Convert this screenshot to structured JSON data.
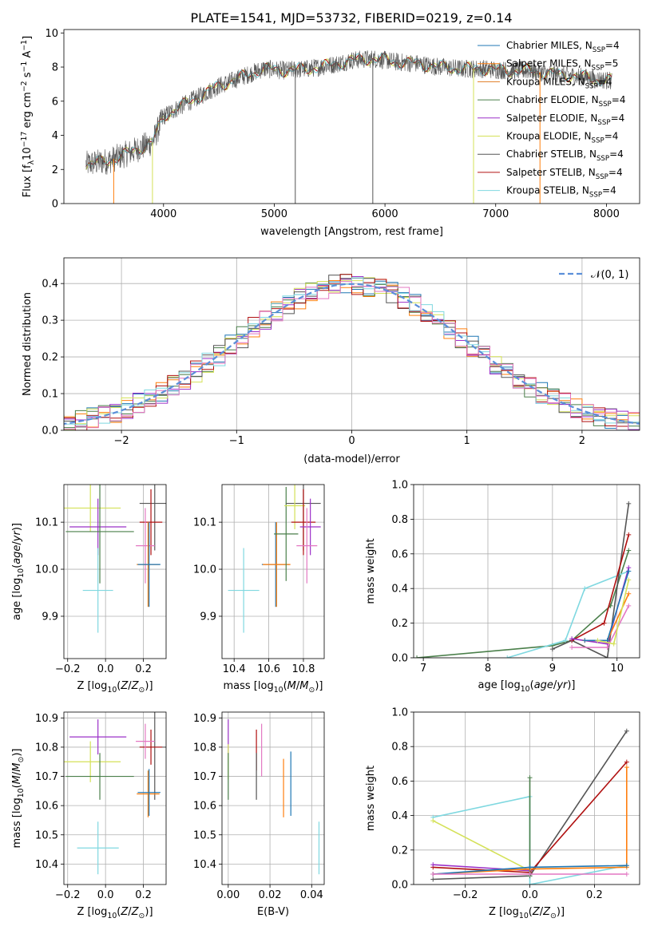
{
  "figure": {
    "title": "PLATE=1541, MJD=53732, FIBERID=0219, z=0.14"
  },
  "legend_spectrum": [
    {
      "model": "Chabrier MILES",
      "nssp": "4",
      "color": "#1f77b4"
    },
    {
      "model": "Salpeter MILES",
      "nssp": "5",
      "color": "#ff7f0e"
    },
    {
      "model": "Kroupa MILES",
      "nssp": "4",
      "color": "#e07b22"
    },
    {
      "model": "Chabrier ELODIE",
      "nssp": "4",
      "color": "#4a7f4a"
    },
    {
      "model": "Salpeter ELODIE",
      "nssp": "4",
      "color": "#9b30c8"
    },
    {
      "model": "Kroupa ELODIE",
      "nssp": "4",
      "color": "#d4e157"
    },
    {
      "model": "Chabrier STELIB",
      "nssp": "4",
      "color": "#555555"
    },
    {
      "model": "Salpeter STELIB",
      "nssp": "4",
      "color": "#b01010"
    },
    {
      "model": "Kroupa STELIB",
      "nssp": "4",
      "color": "#7fd8e0"
    }
  ],
  "chart_data": [
    {
      "id": "spectrum",
      "type": "line",
      "xlabel": "wavelength [Angstrom, rest frame]",
      "ylabel": "Flux [f_λ10^-17 erg cm^-2 s^-1 A^-1]",
      "xlim": [
        3100,
        8300
      ],
      "ylim": [
        0,
        10.2
      ],
      "xticks": [
        4000,
        5000,
        6000,
        7000,
        8000
      ],
      "yticks": [
        0,
        2,
        4,
        6,
        8,
        10
      ],
      "grid": false,
      "legend_position": "top-right",
      "data_curve_anchors": {
        "x": [
          3300,
          3500,
          3700,
          3900,
          4000,
          4100,
          4300,
          4500,
          4700,
          4900,
          5100,
          5300,
          5500,
          5700,
          5900,
          6100,
          6300,
          6500,
          6700,
          6900,
          7100,
          7300,
          7500,
          7700,
          7900,
          8050
        ],
        "y": [
          2.3,
          2.5,
          3.0,
          3.6,
          5.1,
          5.5,
          6.2,
          6.9,
          7.4,
          7.9,
          7.8,
          7.9,
          8.1,
          8.4,
          8.5,
          8.3,
          8.2,
          8.0,
          7.9,
          7.9,
          7.8,
          7.8,
          7.6,
          7.5,
          7.3,
          7.2
        ]
      },
      "model_color": "#7fd8e0",
      "data_color": "#555555"
    },
    {
      "id": "residual-hist",
      "type": "histogram",
      "xlabel": "(data-model)/error",
      "ylabel": "Normed distribution",
      "xlim": [
        -2.5,
        2.5
      ],
      "ylim": [
        0,
        0.47
      ],
      "xticks": [
        -2,
        -1,
        0,
        1,
        2
      ],
      "yticks": [
        0.0,
        0.1,
        0.2,
        0.3,
        0.4
      ],
      "grid": true,
      "bin_width": 0.1,
      "reference_curve": {
        "label": "𝒩(0, 1)",
        "mean": 0,
        "sigma": 1,
        "color": "#5b8fd9"
      },
      "series_colors": [
        "#1f77b4",
        "#ff7f0e",
        "#4a7f4a",
        "#9b30c8",
        "#d4e157",
        "#555555",
        "#b01010",
        "#7fd8e0",
        "#e377c2"
      ]
    },
    {
      "id": "age-vs-Z",
      "type": "errorbar",
      "xlabel": "Z [log10(Z/Z_sun)]",
      "ylabel": "age [log10(age/yr)]",
      "xlim": [
        -0.22,
        0.32
      ],
      "ylim": [
        9.81,
        10.18
      ],
      "xticks": [
        -0.2,
        0.0,
        0.2
      ],
      "yticks": [
        9.9,
        10.0,
        10.1
      ],
      "grid": true,
      "points": [
        {
          "color": "#d4e157",
          "x": -0.08,
          "xerr": 0.16,
          "y": 10.13,
          "yerr": 0.05
        },
        {
          "color": "#9b30c8",
          "x": -0.04,
          "xerr": 0.15,
          "y": 10.09,
          "yerr": 0.06
        },
        {
          "color": "#4a7f4a",
          "x": -0.03,
          "xerr": 0.18,
          "y": 10.08,
          "yerr": 0.11
        },
        {
          "color": "#7fd8e0",
          "x": -0.04,
          "xerr": 0.08,
          "y": 9.955,
          "yerr": 0.09
        },
        {
          "color": "#555555",
          "x": 0.26,
          "xerr": 0.08,
          "y": 10.14,
          "yerr": 0.1
        },
        {
          "color": "#b01010",
          "x": 0.24,
          "xerr": 0.06,
          "y": 10.1,
          "yerr": 0.07
        },
        {
          "color": "#e377c2",
          "x": 0.21,
          "xerr": 0.05,
          "y": 10.05,
          "yerr": 0.08
        },
        {
          "color": "#ff7f0e",
          "x": 0.225,
          "xerr": 0.06,
          "y": 10.01,
          "yerr": 0.09
        },
        {
          "color": "#1f77b4",
          "x": 0.23,
          "xerr": 0.06,
          "y": 10.01,
          "yerr": 0.09
        }
      ]
    },
    {
      "id": "age-vs-mass",
      "type": "errorbar",
      "xlabel": "mass [log10(M/M_sun)]",
      "ylabel": "",
      "xlim": [
        10.33,
        10.92
      ],
      "ylim": [
        9.81,
        10.18
      ],
      "xticks": [
        10.4,
        10.6,
        10.8
      ],
      "yticks": [
        9.9,
        10.0,
        10.1
      ],
      "grid": true,
      "points": [
        {
          "color": "#7fd8e0",
          "x": 10.455,
          "xerr": 0.09,
          "y": 9.955,
          "yerr": 0.09
        },
        {
          "color": "#1f77b4",
          "x": 10.64,
          "xerr": 0.08,
          "y": 10.01,
          "yerr": 0.09
        },
        {
          "color": "#ff7f0e",
          "x": 10.645,
          "xerr": 0.08,
          "y": 10.01,
          "yerr": 0.09
        },
        {
          "color": "#4a7f4a",
          "x": 10.7,
          "xerr": 0.07,
          "y": 10.075,
          "yerr": 0.1
        },
        {
          "color": "#555555",
          "x": 10.8,
          "xerr": 0.1,
          "y": 10.14,
          "yerr": 0.1
        },
        {
          "color": "#d4e157",
          "x": 10.75,
          "xerr": 0.06,
          "y": 10.135,
          "yerr": 0.05
        },
        {
          "color": "#b01010",
          "x": 10.8,
          "xerr": 0.07,
          "y": 10.1,
          "yerr": 0.07
        },
        {
          "color": "#9b30c8",
          "x": 10.84,
          "xerr": 0.06,
          "y": 10.09,
          "yerr": 0.06
        },
        {
          "color": "#e377c2",
          "x": 10.82,
          "xerr": 0.06,
          "y": 10.05,
          "yerr": 0.08
        }
      ]
    },
    {
      "id": "massweight-vs-age",
      "type": "line",
      "xlabel": "age [log10(age/yr)]",
      "ylabel": "mass weight",
      "xlim": [
        6.85,
        10.35
      ],
      "ylim": [
        0,
        1.0
      ],
      "xticks": [
        7,
        8,
        9,
        10
      ],
      "yticks": [
        0.0,
        0.2,
        0.4,
        0.6,
        0.8,
        1.0
      ],
      "grid": true,
      "series": [
        {
          "color": "#4a7f4a",
          "x": [
            6.9,
            9.0,
            9.3,
            9.9,
            10.18
          ],
          "y": [
            0.0,
            0.07,
            0.1,
            0.3,
            0.62
          ]
        },
        {
          "color": "#7fd8e0",
          "x": [
            8.3,
            9.2,
            9.5,
            10.18
          ],
          "y": [
            0.0,
            0.1,
            0.4,
            0.5
          ]
        },
        {
          "color": "#555555",
          "x": [
            9.0,
            9.3,
            9.85,
            10.18
          ],
          "y": [
            0.05,
            0.1,
            0.0,
            0.89
          ]
        },
        {
          "color": "#b01010",
          "x": [
            9.3,
            9.8,
            10.18
          ],
          "y": [
            0.1,
            0.2,
            0.71
          ]
        },
        {
          "color": "#9b30c8",
          "x": [
            9.3,
            9.85,
            10.18
          ],
          "y": [
            0.11,
            0.08,
            0.52
          ]
        },
        {
          "color": "#e377c2",
          "x": [
            9.3,
            9.85,
            10.18
          ],
          "y": [
            0.06,
            0.06,
            0.3
          ]
        },
        {
          "color": "#ff7f0e",
          "x": [
            9.5,
            9.85,
            10.18
          ],
          "y": [
            0.1,
            0.1,
            0.37
          ]
        },
        {
          "color": "#1f77b4",
          "x": [
            9.5,
            9.85,
            10.18
          ],
          "y": [
            0.1,
            0.1,
            0.5
          ]
        },
        {
          "color": "#d4e157",
          "x": [
            9.7,
            9.95,
            10.18
          ],
          "y": [
            0.1,
            0.08,
            0.45
          ]
        }
      ]
    },
    {
      "id": "mass-vs-Z",
      "type": "errorbar",
      "xlabel": "Z [log10(Z/Z_sun)]",
      "ylabel": "mass [log10(M/M_sun)]",
      "xlim": [
        -0.22,
        0.32
      ],
      "ylim": [
        10.33,
        10.92
      ],
      "xticks": [
        -0.2,
        0.0,
        0.2
      ],
      "yticks": [
        10.4,
        10.5,
        10.6,
        10.7,
        10.8,
        10.9
      ],
      "grid": true,
      "points": [
        {
          "color": "#9b30c8",
          "x": -0.04,
          "xerr": 0.15,
          "y": 10.835,
          "yerr": 0.06
        },
        {
          "color": "#d4e157",
          "x": -0.08,
          "xerr": 0.16,
          "y": 10.75,
          "yerr": 0.07
        },
        {
          "color": "#4a7f4a",
          "x": -0.03,
          "xerr": 0.18,
          "y": 10.7,
          "yerr": 0.08
        },
        {
          "color": "#7fd8e0",
          "x": -0.04,
          "xerr": 0.11,
          "y": 10.455,
          "yerr": 0.09
        },
        {
          "color": "#555555",
          "x": 0.26,
          "xerr": 0.08,
          "y": 10.8,
          "yerr": 0.18
        },
        {
          "color": "#b01010",
          "x": 0.24,
          "xerr": 0.06,
          "y": 10.8,
          "yerr": 0.06
        },
        {
          "color": "#e377c2",
          "x": 0.21,
          "xerr": 0.05,
          "y": 10.82,
          "yerr": 0.06
        },
        {
          "color": "#ff7f0e",
          "x": 0.225,
          "xerr": 0.06,
          "y": 10.64,
          "yerr": 0.08
        },
        {
          "color": "#1f77b4",
          "x": 0.23,
          "xerr": 0.06,
          "y": 10.645,
          "yerr": 0.08
        }
      ]
    },
    {
      "id": "mass-vs-ebv",
      "type": "errorbar",
      "xlabel": "E(B-V)",
      "ylabel": "",
      "xlim": [
        -0.003,
        0.046
      ],
      "ylim": [
        10.33,
        10.92
      ],
      "xticks": [
        0.0,
        0.02,
        0.04
      ],
      "yticks": [
        10.4,
        10.5,
        10.6,
        10.7,
        10.8,
        10.9
      ],
      "grid": true,
      "points": [
        {
          "color": "#9b30c8",
          "x": 0.0,
          "xerr": 0,
          "y": 10.835,
          "yerr": 0.06
        },
        {
          "color": "#d4e157",
          "x": 0.0,
          "xerr": 0,
          "y": 10.75,
          "yerr": 0.06
        },
        {
          "color": "#4a7f4a",
          "x": 0.0,
          "xerr": 0,
          "y": 10.7,
          "yerr": 0.08
        },
        {
          "color": "#b01010",
          "x": 0.0135,
          "xerr": 0,
          "y": 10.79,
          "yerr": 0.07
        },
        {
          "color": "#555555",
          "x": 0.0135,
          "xerr": 0,
          "y": 10.7,
          "yerr": 0.08
        },
        {
          "color": "#e377c2",
          "x": 0.016,
          "xerr": 0,
          "y": 10.79,
          "yerr": 0.09
        },
        {
          "color": "#ff7f0e",
          "x": 0.0265,
          "xerr": 0,
          "y": 10.66,
          "yerr": 0.1
        },
        {
          "color": "#1f77b4",
          "x": 0.03,
          "xerr": 0,
          "y": 10.675,
          "yerr": 0.11
        },
        {
          "color": "#7fd8e0",
          "x": 0.0435,
          "xerr": 0,
          "y": 10.455,
          "yerr": 0.09
        }
      ]
    },
    {
      "id": "massweight-vs-Z",
      "type": "line",
      "xlabel": "Z [log10(Z/Z_sun)]",
      "ylabel": "mass weight",
      "xlim": [
        -0.36,
        0.34
      ],
      "ylim": [
        0,
        1.0
      ],
      "xticks": [
        -0.2,
        0.0,
        0.2
      ],
      "yticks": [
        0.0,
        0.2,
        0.4,
        0.6,
        0.8,
        1.0
      ],
      "grid": true,
      "series": [
        {
          "color": "#555555",
          "x": [
            -0.3,
            0.0,
            0.3
          ],
          "y": [
            0.03,
            0.05,
            0.89
          ]
        },
        {
          "color": "#b01010",
          "x": [
            -0.3,
            0.0,
            0.3
          ],
          "y": [
            0.1,
            0.07,
            0.71
          ]
        },
        {
          "color": "#7fd8e0",
          "x": [
            -0.3,
            0.0,
            0.0
          ],
          "y": [
            0.39,
            0.51,
            0.0
          ]
        },
        {
          "color": "#7fd8e0",
          "x": [
            0.0,
            0.3
          ],
          "y": [
            0.0,
            0.11
          ]
        },
        {
          "color": "#d4e157",
          "x": [
            -0.3,
            0.0
          ],
          "y": [
            0.37,
            0.08
          ]
        },
        {
          "color": "#9b30c8",
          "x": [
            -0.3,
            0.0
          ],
          "y": [
            0.115,
            0.08
          ]
        },
        {
          "color": "#4a7f4a",
          "x": [
            0.0,
            0.0
          ],
          "y": [
            0.05,
            0.62
          ]
        },
        {
          "color": "#ff7f0e",
          "x": [
            -0.3,
            0.0,
            0.3,
            0.3
          ],
          "y": [
            0.06,
            0.09,
            0.1,
            0.68
          ]
        },
        {
          "color": "#1f77b4",
          "x": [
            -0.3,
            0.0,
            0.3
          ],
          "y": [
            0.06,
            0.1,
            0.11
          ]
        },
        {
          "color": "#e377c2",
          "x": [
            -0.3,
            0.0,
            0.3
          ],
          "y": [
            0.06,
            0.06,
            0.06
          ]
        }
      ]
    }
  ]
}
